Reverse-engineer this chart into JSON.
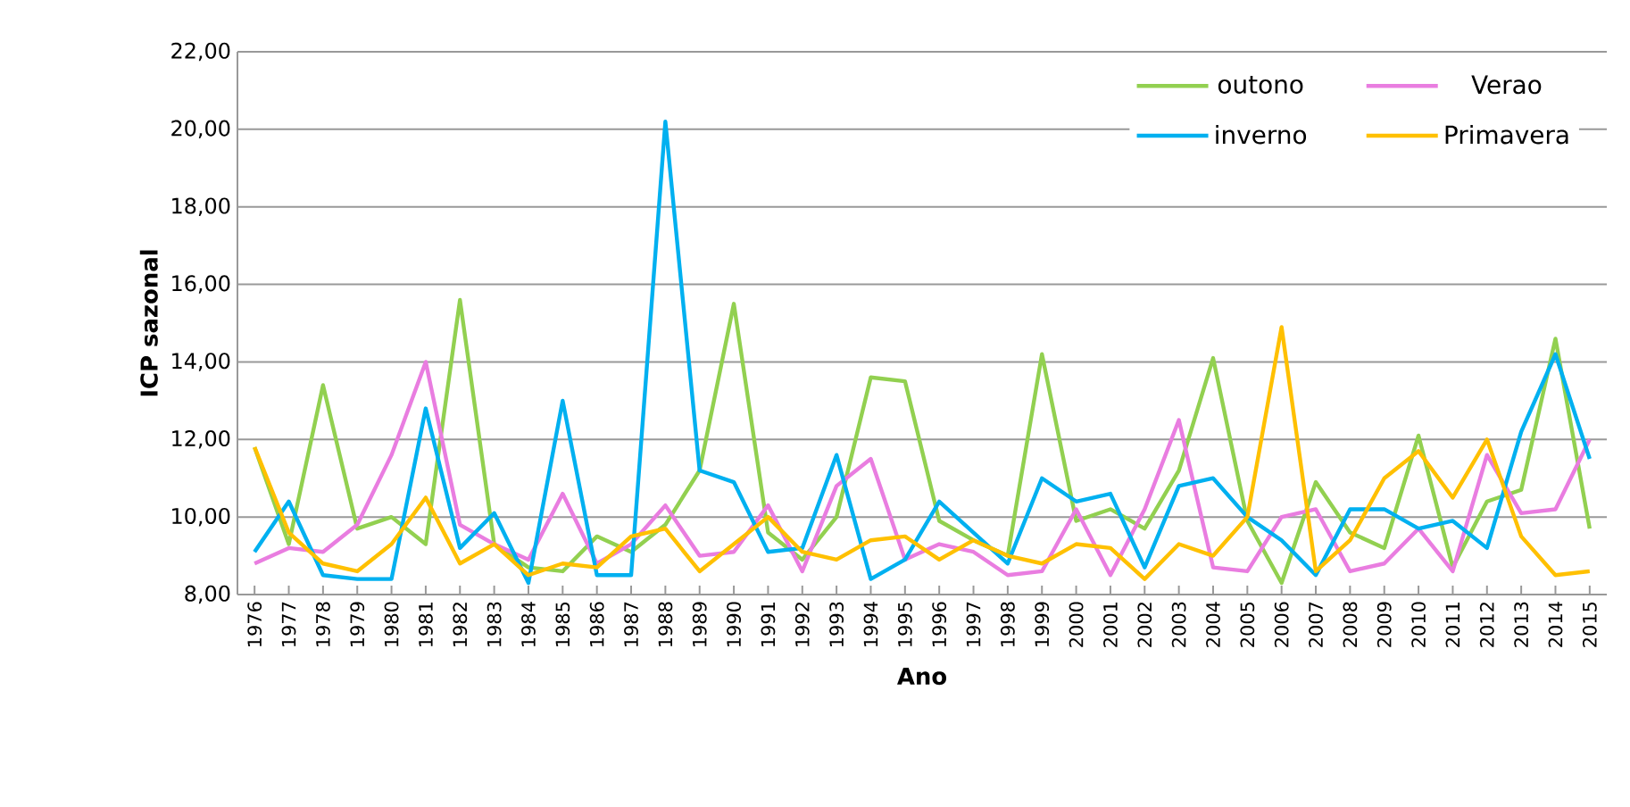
{
  "chart_data": {
    "type": "line",
    "xlabel": "Ano",
    "ylabel": "ICP sazonal",
    "categories": [
      "1976",
      "1977",
      "1978",
      "1979",
      "1980",
      "1981",
      "1982",
      "1983",
      "1984",
      "1985",
      "1986",
      "1987",
      "1988",
      "1989",
      "1990",
      "1991",
      "1992",
      "1993",
      "1994",
      "1995",
      "1996",
      "1997",
      "1998",
      "1999",
      "2000",
      "2001",
      "2002",
      "2003",
      "2004",
      "2005",
      "2006",
      "2007",
      "2008",
      "2009",
      "2010",
      "2011",
      "2012",
      "2013",
      "2014",
      "2015"
    ],
    "series": [
      {
        "name": "outono",
        "color": "#92d050",
        "values": [
          11.8,
          9.3,
          13.4,
          9.7,
          10.0,
          9.3,
          15.6,
          9.3,
          8.7,
          8.6,
          9.5,
          9.1,
          9.8,
          11.2,
          15.5,
          9.6,
          8.9,
          10.0,
          13.6,
          13.5,
          9.9,
          9.4,
          9.0,
          14.2,
          9.9,
          10.2,
          9.7,
          11.2,
          14.1,
          9.9,
          8.3,
          10.9,
          9.6,
          9.2,
          12.1,
          8.7,
          10.4,
          10.7,
          14.6,
          9.7
        ]
      },
      {
        "name": "Verao",
        "color": "#e97de0",
        "values": [
          8.8,
          9.2,
          9.1,
          9.8,
          11.6,
          14.0,
          9.8,
          9.3,
          8.9,
          10.6,
          8.8,
          9.3,
          10.3,
          9.0,
          9.1,
          10.3,
          8.6,
          10.8,
          11.5,
          8.9,
          9.3,
          9.1,
          8.5,
          8.6,
          10.2,
          8.5,
          10.2,
          12.5,
          8.7,
          8.6,
          10.0,
          10.2,
          8.6,
          8.8,
          9.7,
          8.6,
          11.6,
          10.1,
          10.2,
          12.0
        ]
      },
      {
        "name": "inverno",
        "color": "#00b0f0",
        "values": [
          9.1,
          10.4,
          8.5,
          8.4,
          8.4,
          12.8,
          9.2,
          10.1,
          8.3,
          13.0,
          8.5,
          8.5,
          20.2,
          11.2,
          10.9,
          9.1,
          9.2,
          11.6,
          8.4,
          8.9,
          10.4,
          9.6,
          8.8,
          11.0,
          10.4,
          10.6,
          8.7,
          10.8,
          11.0,
          10.0,
          9.4,
          8.5,
          10.2,
          10.2,
          9.7,
          9.9,
          9.2,
          12.2,
          14.2,
          11.5
        ]
      },
      {
        "name": "Primavera",
        "color": "#ffc000",
        "values": [
          11.8,
          9.6,
          8.8,
          8.6,
          9.3,
          10.5,
          8.8,
          9.3,
          8.5,
          8.8,
          8.7,
          9.5,
          9.7,
          8.6,
          9.3,
          10.0,
          9.1,
          8.9,
          9.4,
          9.5,
          8.9,
          9.4,
          9.0,
          8.8,
          9.3,
          9.2,
          8.4,
          9.3,
          9.0,
          10.0,
          14.9,
          8.6,
          9.4,
          11.0,
          11.7,
          10.5,
          12.0,
          9.5,
          8.5,
          8.6
        ]
      }
    ],
    "ylim": [
      8,
      22
    ],
    "yticks": [
      {
        "value": 8,
        "label": "8,00"
      },
      {
        "value": 10,
        "label": "10,00"
      },
      {
        "value": 12,
        "label": "12,00"
      },
      {
        "value": 14,
        "label": "14,00"
      },
      {
        "value": 16,
        "label": "16,00"
      },
      {
        "value": 18,
        "label": "18,00"
      },
      {
        "value": 20,
        "label": "20,00"
      },
      {
        "value": 22,
        "label": "22,00"
      }
    ],
    "grid": "y",
    "legend": "top right"
  }
}
